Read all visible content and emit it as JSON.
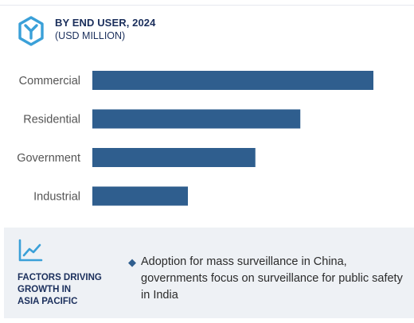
{
  "header": {
    "title": "BY END USER, 2024",
    "subtitle": "(USD MILLION)",
    "icon": "hexagon-y-logo-icon"
  },
  "chart_data": {
    "type": "bar",
    "orientation": "horizontal",
    "categories": [
      "Commercial",
      "Residential",
      "Government",
      "Industrial"
    ],
    "values": [
      100,
      74,
      58,
      34
    ],
    "title": "BY END USER, 2024",
    "xlabel": "",
    "ylabel": "",
    "xlim": [
      0,
      100
    ],
    "grid": false,
    "bar_color": "#2f5e8e"
  },
  "footer": {
    "icon": "trend-line-chart-icon",
    "label_lines": [
      "FACTORS DRIVING",
      "GROWTH IN",
      "ASIA PACIFIC"
    ],
    "bullet": "◆",
    "factor_text": "Adoption for mass surveillance in China, governments focus on surveillance for public safety in India"
  },
  "colors": {
    "accent": "#2f5e8e",
    "title": "#1b2f5c",
    "icon": "#3aa0d8",
    "footer_bg": "#eef1f5"
  }
}
